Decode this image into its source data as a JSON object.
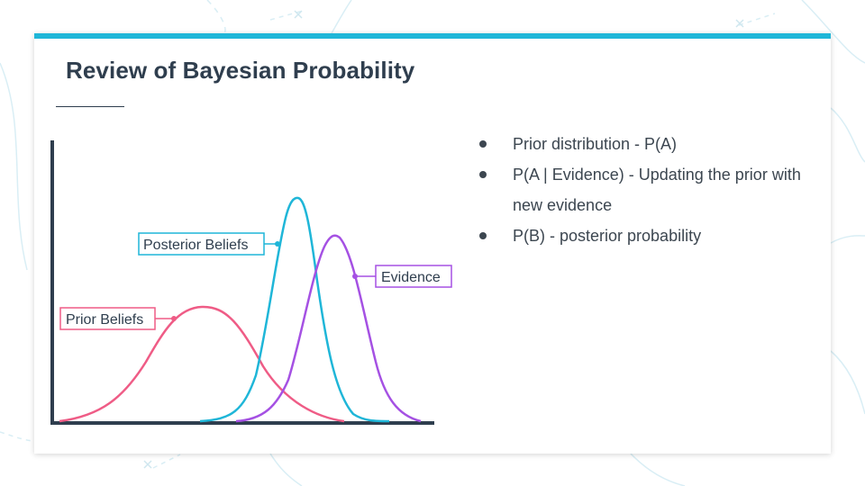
{
  "slide": {
    "title": "Review of Bayesian Probability"
  },
  "bullets": [
    {
      "text": "Prior distribution - P(A)"
    },
    {
      "text": "P(A | Evidence) - Updating the prior with new evidence"
    },
    {
      "text": "P(B) - posterior probability"
    }
  ],
  "diagram": {
    "labels": {
      "prior": "Prior Beliefs",
      "posterior": "Posterior Beliefs",
      "evidence": "Evidence"
    }
  },
  "colors": {
    "accent": "#1fb6d8",
    "title": "#2f3e4e",
    "prior_curve": "#ef5c86",
    "posterior_curve": "#1fb6d8",
    "evidence_curve": "#a551e3",
    "axis": "#2f3e4e"
  }
}
